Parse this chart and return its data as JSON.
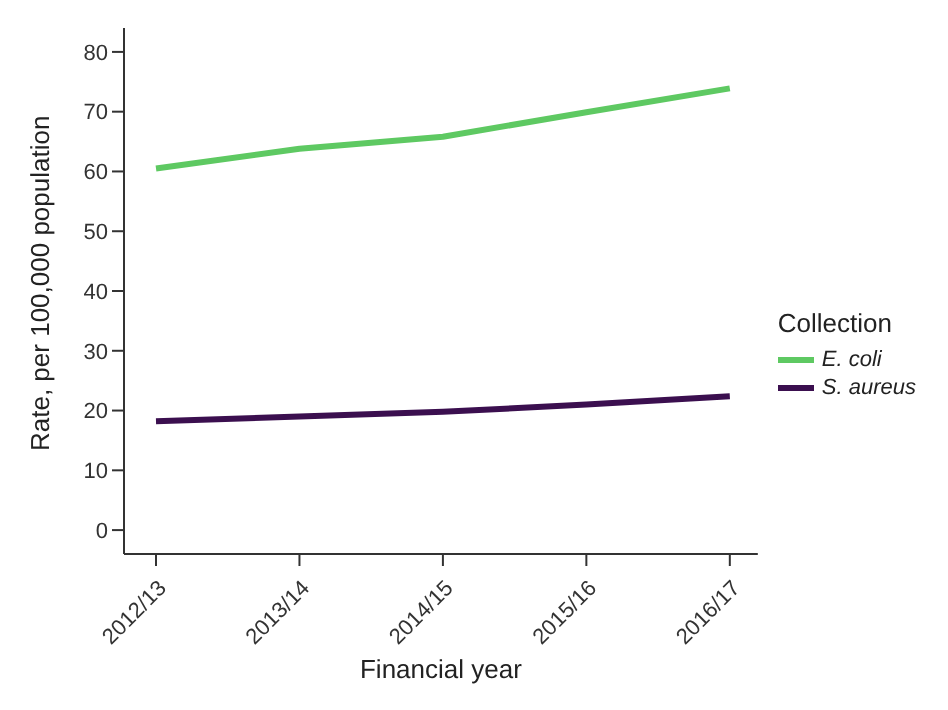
{
  "chart_data": {
    "type": "line",
    "xlabel": "Financial year",
    "ylabel": "Rate, per 100,000 population",
    "legend_title": "Collection",
    "categories": [
      "2012/13",
      "2013/14",
      "2014/15",
      "2015/16",
      "2016/17"
    ],
    "series": [
      {
        "name": "E. coli",
        "color": "#5ec962",
        "values": [
          60.5,
          63.8,
          65.8,
          69.9,
          73.9
        ]
      },
      {
        "name": "S. aureus",
        "color": "#3b0f4f",
        "values": [
          18.2,
          19.0,
          19.8,
          21.0,
          22.4
        ]
      }
    ],
    "ylim": [
      -4,
      84
    ],
    "yticks": [
      0,
      10,
      20,
      30,
      40,
      50,
      60,
      70,
      80
    ],
    "grid": false,
    "legend": "right",
    "marker": "none",
    "line_style": "solid"
  }
}
